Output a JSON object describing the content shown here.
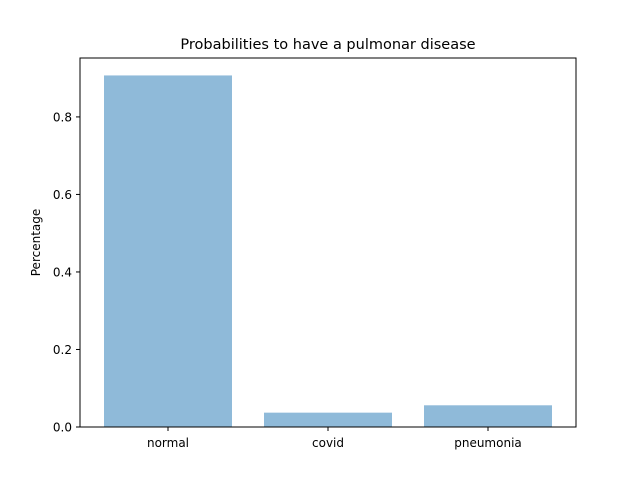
{
  "chart_data": {
    "type": "bar",
    "title": "Probabilities to have a pulmonar disease",
    "xlabel": "",
    "ylabel": "Percentage",
    "categories": [
      "normal",
      "covid",
      "pneumonia"
    ],
    "values": [
      0.907,
      0.037,
      0.056
    ],
    "ylim": [
      0,
      0.952
    ],
    "yticks": [
      "0.0",
      "0.2",
      "0.4",
      "0.6",
      "0.8"
    ],
    "ytick_values": [
      0.0,
      0.2,
      0.4,
      0.6,
      0.8
    ],
    "bar_color": "#8fbad9",
    "grid": false,
    "legend": "none"
  }
}
